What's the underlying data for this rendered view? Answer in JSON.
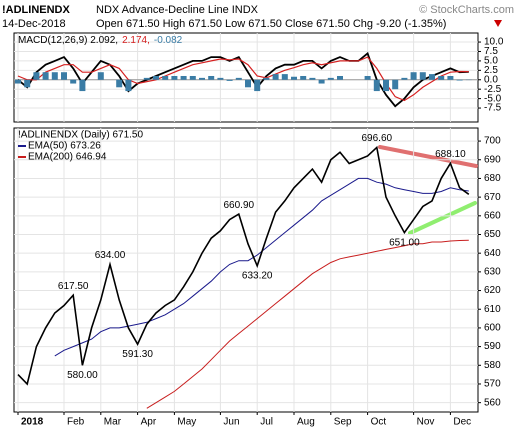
{
  "header": {
    "symbol": "!ADLINENDX",
    "name": "NDX Advance-Decline Line INDX",
    "copyright": "© StockCharts.com",
    "date": "14-Dec-2018",
    "quote": "Open 671.50 High 671.50 Low 671.50 Close 671.50 Chg -9.20 (-1.35%)"
  },
  "chart_data": [
    {
      "type": "macd",
      "ylim": [
        -11.2,
        12.4
      ],
      "yticks": [
        {
          "value": 10,
          "label": "10.0"
        },
        7.5,
        {
          "value": 5,
          "label": "5.0"
        },
        2.5,
        {
          "value": 0,
          "label": "0.0"
        },
        -2.5,
        {
          "value": -5,
          "label": "-5.0"
        },
        -7.5
      ],
      "grid": true,
      "series": [
        {
          "name": "MACD(12,26,9) 2.092,",
          "kind": "line",
          "color": "#000000",
          "values": [
            0,
            -2,
            2,
            4,
            5,
            6,
            3,
            -1,
            2,
            5,
            4,
            1,
            -3,
            -1,
            0,
            1,
            2,
            3,
            4,
            5,
            5,
            6,
            6,
            5,
            6,
            2,
            -2,
            1,
            3,
            4,
            4,
            5,
            5,
            3,
            5,
            6,
            5,
            5,
            7,
            0,
            -4,
            -7,
            -5,
            -2,
            0,
            1,
            2,
            3,
            2,
            2.092
          ]
        },
        {
          "name": "2.174,",
          "kind": "line",
          "color": "#d62020",
          "values": [
            1,
            0,
            0,
            2,
            3,
            4,
            4,
            2,
            2,
            3,
            4,
            3,
            0,
            -1,
            -0.5,
            0,
            1,
            2,
            3,
            4,
            4.5,
            5,
            5.5,
            5.3,
            5.5,
            4,
            1,
            0.5,
            1.5,
            2.5,
            3.2,
            4,
            4.5,
            4,
            4.5,
            5,
            5,
            5,
            6,
            3,
            -1,
            -4.5,
            -5.5,
            -4,
            -2,
            -0.5,
            1,
            2,
            2.2,
            2.174
          ]
        },
        {
          "name": "-0.082",
          "kind": "histogram",
          "color": "#3a7ca5",
          "values": [
            -1,
            -2,
            2,
            2,
            2,
            2,
            -1,
            -3,
            0,
            2,
            0,
            -2,
            -3,
            0,
            0.5,
            1,
            1,
            1,
            1,
            1,
            0.5,
            1,
            0.5,
            -0.3,
            0.5,
            -2,
            -3,
            0.5,
            1.5,
            1.5,
            0.8,
            1,
            0.5,
            -1,
            0.5,
            1,
            0,
            0,
            1,
            -3,
            -3,
            -2.5,
            0.5,
            2,
            2,
            1.5,
            1,
            1,
            -0.2,
            -0.082
          ]
        }
      ]
    },
    {
      "type": "line",
      "ylim": [
        555,
        707
      ],
      "yticks": [
        560,
        570,
        580,
        590,
        600,
        610,
        620,
        630,
        640,
        650,
        660,
        670,
        680,
        690,
        700
      ],
      "grid": true,
      "categories": [
        "2018",
        null,
        null,
        null,
        null,
        "Feb",
        null,
        null,
        null,
        "Mar",
        null,
        null,
        null,
        "Apr",
        null,
        null,
        null,
        "May",
        null,
        null,
        null,
        null,
        "Jun",
        null,
        null,
        null,
        "Jul",
        null,
        null,
        null,
        "Aug",
        null,
        null,
        null,
        "Sep",
        null,
        null,
        null,
        "Oct",
        null,
        null,
        null,
        null,
        "Nov",
        null,
        null,
        null,
        "Dec",
        null,
        null
      ],
      "series": [
        {
          "name": "!ADLINENDX (Daily) 671.50",
          "color": "#000000",
          "values": [
            575,
            570,
            590,
            600,
            608,
            612,
            617.5,
            580,
            600,
            615,
            634,
            615,
            600,
            591.3,
            602,
            608,
            612,
            615,
            622,
            630,
            640,
            648,
            652,
            658,
            660.9,
            645,
            633.2,
            648,
            662,
            668,
            675,
            680,
            685,
            678,
            690,
            694,
            688,
            690,
            692,
            696.6,
            670,
            660,
            651,
            658,
            665,
            668,
            680,
            688.1,
            675,
            671.5
          ],
          "value_labels": [
            null,
            null,
            null,
            null,
            null,
            null,
            "617.50",
            "580.00",
            null,
            null,
            "634.00",
            null,
            null,
            "591.30",
            null,
            null,
            null,
            null,
            null,
            null,
            null,
            null,
            null,
            null,
            "660.90",
            null,
            "633.20",
            null,
            null,
            null,
            null,
            null,
            null,
            null,
            null,
            null,
            null,
            null,
            null,
            "696.60",
            null,
            null,
            "651.00",
            null,
            null,
            null,
            null,
            "688.10",
            null,
            null
          ]
        },
        {
          "name": "EMA(50) 673.26",
          "color": "#1a1a8c",
          "values": [
            null,
            null,
            null,
            null,
            585,
            588,
            590,
            592,
            594,
            598,
            600,
            600,
            601,
            602,
            603,
            605,
            607,
            610,
            613,
            617,
            621,
            625,
            630,
            634,
            636,
            636,
            639,
            643,
            647,
            651,
            655,
            659,
            663,
            668,
            671,
            674,
            677,
            680,
            680,
            678,
            677,
            675,
            674,
            673,
            672,
            672,
            673,
            675,
            674,
            673.26
          ]
        },
        {
          "name": "EMA(200) 646.94",
          "color": "#c81e1e",
          "values": [
            null,
            null,
            null,
            null,
            null,
            null,
            null,
            null,
            null,
            null,
            null,
            null,
            null,
            null,
            557,
            560,
            563,
            566,
            570,
            574,
            578,
            583,
            588,
            593,
            597,
            601,
            605,
            609,
            613,
            617,
            621,
            625,
            629,
            632,
            635,
            637,
            638,
            639,
            640,
            641,
            642,
            643,
            644,
            645,
            645,
            646,
            646,
            646.5,
            646.8,
            646.94
          ]
        }
      ]
    }
  ]
}
